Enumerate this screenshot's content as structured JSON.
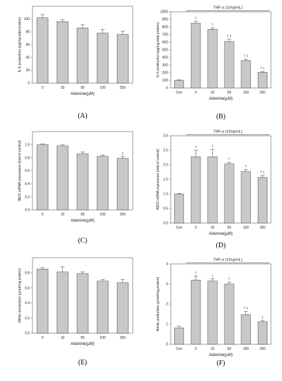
{
  "chart_data": [
    {
      "type": "bar",
      "panel": "(A)",
      "ylabel": "IL-6 production (pg/mg total protein)",
      "xlabel": "Adenine(μM)",
      "categories": [
        "0",
        "10",
        "50",
        "100",
        "250"
      ],
      "values": [
        102,
        96,
        86,
        78,
        76
      ],
      "errors": [
        5,
        3,
        5,
        6,
        5
      ],
      "significance": [
        "",
        "",
        "",
        "",
        ""
      ],
      "ylim": [
        0,
        120
      ],
      "yticks": [
        0,
        20,
        40,
        60,
        80,
        100
      ],
      "treatment_label": ""
    },
    {
      "type": "bar",
      "panel": "(B)",
      "ylabel": "IL-6 production (pg/mg total protein)",
      "xlabel": "Adenine(μM)",
      "categories": [
        "Con",
        "0",
        "10",
        "50",
        "100",
        "250"
      ],
      "values": [
        100,
        850,
        770,
        610,
        360,
        205
      ],
      "errors": [
        8,
        25,
        20,
        30,
        20,
        12
      ],
      "significance": [
        "",
        "†",
        "†",
        "† ‡",
        "† ‡",
        "† ‡"
      ],
      "ylim": [
        0,
        1000
      ],
      "yticks": [
        0,
        100,
        200,
        300,
        400,
        500,
        600,
        700,
        800,
        900,
        1000
      ],
      "treatment_label": "TNF-α (10ng/mL)"
    },
    {
      "type": "bar",
      "panel": "(C)",
      "ylabel": "iNOS mRNA expression (fold of control)",
      "xlabel": "Adenine(μM)",
      "categories": [
        "0",
        "10",
        "50",
        "100",
        "250"
      ],
      "values": [
        1.0,
        0.98,
        0.86,
        0.82,
        0.79
      ],
      "errors": [
        0.01,
        0.02,
        0.03,
        0.02,
        0.03
      ],
      "significance": [
        "",
        "",
        "",
        "",
        "‡"
      ],
      "ylim": [
        0,
        1.2
      ],
      "yticks": [
        0.0,
        0.2,
        0.4,
        0.6,
        0.8,
        1.0
      ],
      "treatment_label": ""
    },
    {
      "type": "bar",
      "panel": "(D)",
      "ylabel": "iNOS mRNA expression (fold of control)",
      "xlabel": "Adenine(μM)",
      "categories": [
        "Con",
        "0",
        "10",
        "50",
        "100",
        "250"
      ],
      "values": [
        1.0,
        2.28,
        2.28,
        2.03,
        1.77,
        1.57
      ],
      "errors": [
        0.02,
        0.22,
        0.25,
        0.06,
        0.07,
        0.07
      ],
      "significance": [
        "",
        "†",
        "†",
        "†",
        "†",
        "† ‡"
      ],
      "ylim": [
        0,
        3.0
      ],
      "yticks": [
        0.0,
        0.5,
        1.0,
        1.5,
        2.0,
        2.5,
        3.0
      ],
      "treatment_label": "TNF-α (10ng/mL)"
    },
    {
      "type": "bar",
      "panel": "(E)",
      "ylabel": "Nitrite production (μmol/mg protein)",
      "xlabel": "Adenine(μM)",
      "categories": [
        "0",
        "10",
        "50",
        "100",
        "250"
      ],
      "values": [
        0.85,
        0.81,
        0.79,
        0.69,
        0.67
      ],
      "errors": [
        0.02,
        0.07,
        0.02,
        0.02,
        0.04
      ],
      "significance": [
        "",
        "",
        "",
        "",
        ""
      ],
      "ylim": [
        0,
        1.0
      ],
      "yticks": [
        0.0,
        0.2,
        0.4,
        0.6,
        0.8
      ],
      "treatment_label": ""
    },
    {
      "type": "bar",
      "panel": "(F)",
      "ylabel": "Nitrite production (μmol/mg protein)",
      "xlabel": "Adenine(μM)",
      "categories": [
        "Con",
        "0",
        "10",
        "50",
        "100",
        "250"
      ],
      "values": [
        0.82,
        3.2,
        3.15,
        3.0,
        1.48,
        1.12
      ],
      "errors": [
        0.08,
        0.2,
        0.1,
        0.1,
        0.15,
        0.06
      ],
      "significance": [
        "",
        "†",
        "†",
        "†",
        "† ‡",
        "‡"
      ],
      "ylim": [
        0,
        4
      ],
      "yticks": [
        0,
        1,
        2,
        3,
        4
      ],
      "treatment_label": "TNF-α (10ng/mL)"
    }
  ]
}
